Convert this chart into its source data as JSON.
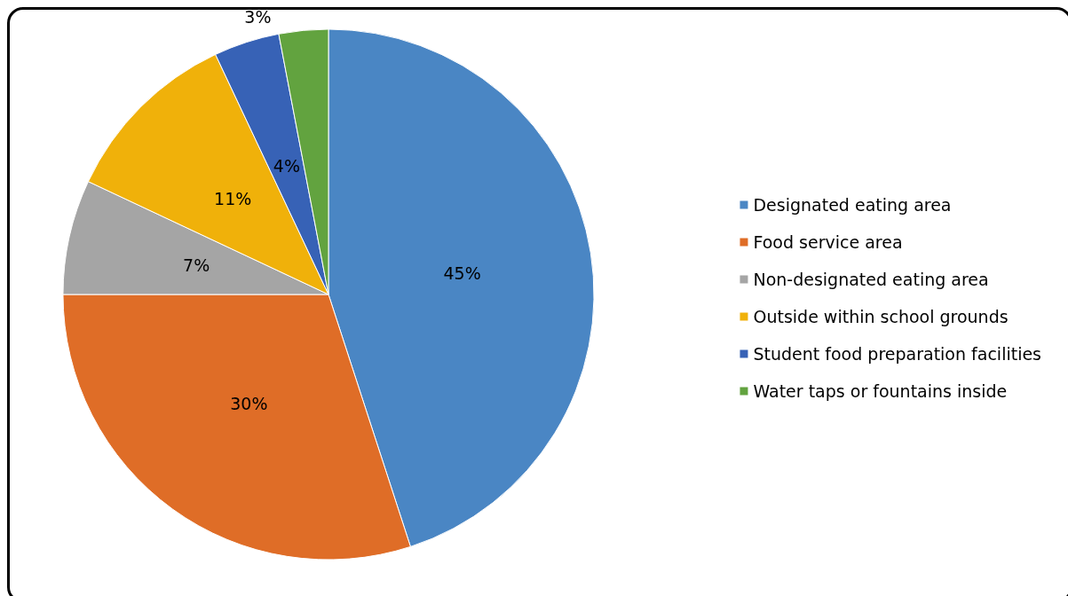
{
  "chart_data": {
    "type": "pie",
    "categories": [
      "Designated eating area",
      "Food service area",
      "Non-designated eating area",
      "Outside within school grounds",
      "Student food preparation facilities",
      "Water taps or fountains inside"
    ],
    "values": [
      45,
      30,
      7,
      11,
      4,
      3
    ],
    "colors": [
      "#4a86c4",
      "#df6d27",
      "#a5a5a5",
      "#f0b10a",
      "#3762b6",
      "#62a33f"
    ],
    "value_labels": [
      "45%",
      "30%",
      "7%",
      "11%",
      "4%",
      "3%"
    ],
    "legend": "right"
  }
}
